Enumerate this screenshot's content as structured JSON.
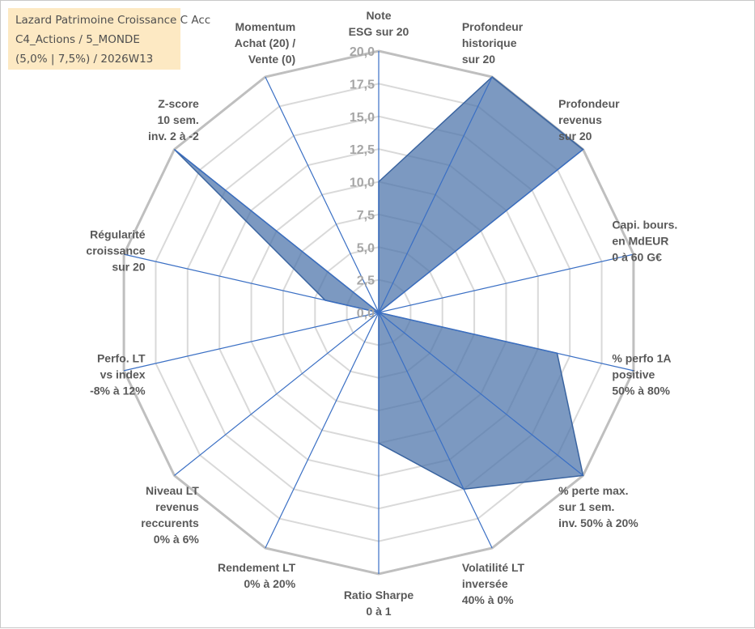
{
  "title_box": {
    "line1": "Lazard Patrimoine Croissance C Acc",
    "line2": "C4_Actions / 5_MONDE",
    "line3": "(5,0% | 7,5%) / 2026W13"
  },
  "chart_data": {
    "type": "radar",
    "rmin": 0,
    "rmax": 20,
    "tick_step": 2.5,
    "tick_labels": [
      "0,0",
      "2,5",
      "5,0",
      "7,5",
      "10,0",
      "12,5",
      "15,0",
      "17,5",
      "20,0"
    ],
    "axes": [
      [
        "Note",
        "ESG sur 20"
      ],
      [
        "Profondeur",
        "historique",
        "sur 20"
      ],
      [
        "Profondeur",
        "revenus",
        "sur 20"
      ],
      [
        "Capi. bours.",
        "en MdEUR",
        "0 à 60 G€"
      ],
      [
        "% perfo 1A",
        "positive",
        "50% à 80%"
      ],
      [
        "% perte max.",
        "sur 1 sem.",
        "inv. 50% à 20%"
      ],
      [
        "Volatilité LT",
        "inversée",
        "40% à 0%"
      ],
      [
        "Ratio Sharpe",
        "0 à 1"
      ],
      [
        "Rendement LT",
        "0% à 20%"
      ],
      [
        "Niveau LT",
        "revenus",
        "reccurents",
        "0% à 6%"
      ],
      [
        "Perfo. LT",
        "vs index",
        "-8% à 12%"
      ],
      [
        "Régularité",
        "croissance",
        "sur 20"
      ],
      [
        "Z-score",
        "10 sem.",
        "inv. 2 à -2"
      ],
      [
        "Momentum",
        "Achat (20) /",
        "Vente (0)"
      ]
    ],
    "series": [
      {
        "values": [
          10.0,
          20.0,
          20.0,
          0.0,
          14.0,
          20.0,
          15.0,
          10.0,
          0.0,
          0.0,
          0.0,
          4.2,
          20.0,
          0.0
        ]
      }
    ],
    "grid": true,
    "colors": {
      "fill": "#4a72a9",
      "fill_opacity": 0.72,
      "series_line": "#3a64a0",
      "spoke": "#3a6fc4",
      "grid_ring": "#d9d9d9",
      "outer_ring": "#bfbfbf",
      "label": "#595959",
      "tick": "#a6a6a6"
    }
  }
}
